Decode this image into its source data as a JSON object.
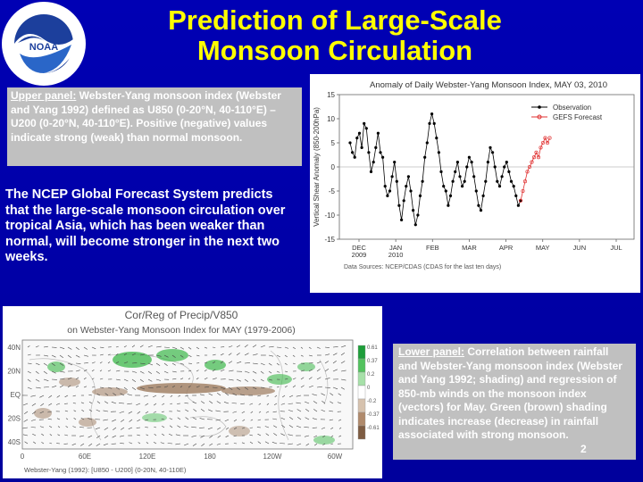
{
  "slide": {
    "title_line1": "Prediction of Large-Scale",
    "title_line2": "Monsoon Circulation",
    "logo_text": "NATIONAL OCEANIC AND ATMOSPHERIC ADMINISTRATION U.S. DEPARTMENT OF COMMERCE",
    "logo_abbrev": "NOAA",
    "page_number": "2"
  },
  "upper_caption": {
    "lead": "Upper panel:",
    "text": " Webster-Yang monsoon index (Webster and Yang 1992) defined as U850 (0-20°N, 40-110°E) – U200 (0-20°N, 40-110°E). Positive (negative) values indicate strong (weak) than normal monsoon."
  },
  "gfs_text": "The NCEP Global Forecast System predicts that the large-scale monsoon circulation over tropical Asia, which has been weaker than normal, will become stronger in the next two weeks.",
  "lower_caption": {
    "lead": "Lower panel:",
    "text": " Correlation between rainfall and Webster-Yang monsoon index (Webster and Yang 1992; shading) and regression of 850-mb winds on the monsoon index (vectors) for May. Green (brown) shading indicates increase (decrease) in rainfall associated with strong monsoon."
  },
  "upper_chart": {
    "title": "Anomaly of Daily Webster-Yang Monsoon Index, MAY 03, 2010",
    "ylabel": "Vertical Shear Anomaly (850-200hPa)",
    "yticks": [
      "15",
      "10",
      "5",
      "0",
      "-5",
      "-10",
      "-15"
    ],
    "xticks": [
      "DEC\n2009",
      "JAN\n2010",
      "FEB",
      "MAR",
      "APR",
      "MAY",
      "JUN",
      "JUL"
    ],
    "legend_observation": "Observation",
    "legend_forecast": "GEFS Forecast",
    "source": "Data Sources: NCEP/CDAS (CDAS for the last ten days)",
    "colors": {
      "observation": "#000000",
      "forecast": "#e03030"
    }
  },
  "chart_data": {
    "type": "line",
    "title": "Anomaly of Daily Webster-Yang Monsoon Index, MAY 03, 2010",
    "ylabel": "Vertical Shear Anomaly (850-200hPa)",
    "ylim": [
      -15,
      15
    ],
    "x_ticks": [
      "DEC 2009",
      "JAN 2010",
      "FEB",
      "MAR",
      "APR",
      "MAY",
      "JUN",
      "JUL"
    ],
    "series": [
      {
        "name": "Observation",
        "color": "#000000",
        "values": [
          5,
          3,
          2,
          6,
          7,
          4,
          9,
          8,
          3,
          -1,
          1,
          4,
          7,
          3,
          2,
          -4,
          -6,
          -5,
          -2,
          1,
          -3,
          -8,
          -11,
          -7,
          -4,
          -2,
          -5,
          -9,
          -12,
          -10,
          -6,
          -3,
          2,
          5,
          9,
          11,
          9,
          6,
          3,
          -1,
          -4,
          -5,
          -8,
          -6,
          -3,
          -1,
          1,
          -2,
          -4,
          -3,
          0,
          2,
          1,
          -2,
          -5,
          -8,
          -9,
          -6,
          -3,
          1,
          4,
          3,
          0,
          -3,
          -4,
          -2,
          0,
          1,
          -1,
          -3,
          -4,
          -6,
          -8,
          -7
        ]
      },
      {
        "name": "GEFS Forecast",
        "color": "#e03030",
        "values": [
          -7,
          -5,
          -3,
          -1,
          0,
          1,
          2,
          3,
          2,
          4,
          5,
          6,
          5,
          6
        ]
      }
    ]
  },
  "lower_map": {
    "title_line1": "Cor/Reg of Precip/V850",
    "title_line2": "on Webster-Yang Monsoon Index for MAY (1979-2006)",
    "lat_ticks": [
      "40N",
      "20N",
      "EQ",
      "20S",
      "40S"
    ],
    "lon_ticks": [
      "0",
      "60E",
      "120E",
      "180",
      "120W",
      "60W"
    ],
    "colorbar_ticks": [
      "0.61",
      "0.37",
      "0.2",
      "0",
      "-0.2",
      "-0.37",
      "-0.61"
    ],
    "footnote": "Webster-Yang (1992): [U850 - U200] (0-20N, 40-110E)",
    "colors": {
      "positive": "#3cb84a",
      "negative": "#9c7a5e"
    }
  }
}
